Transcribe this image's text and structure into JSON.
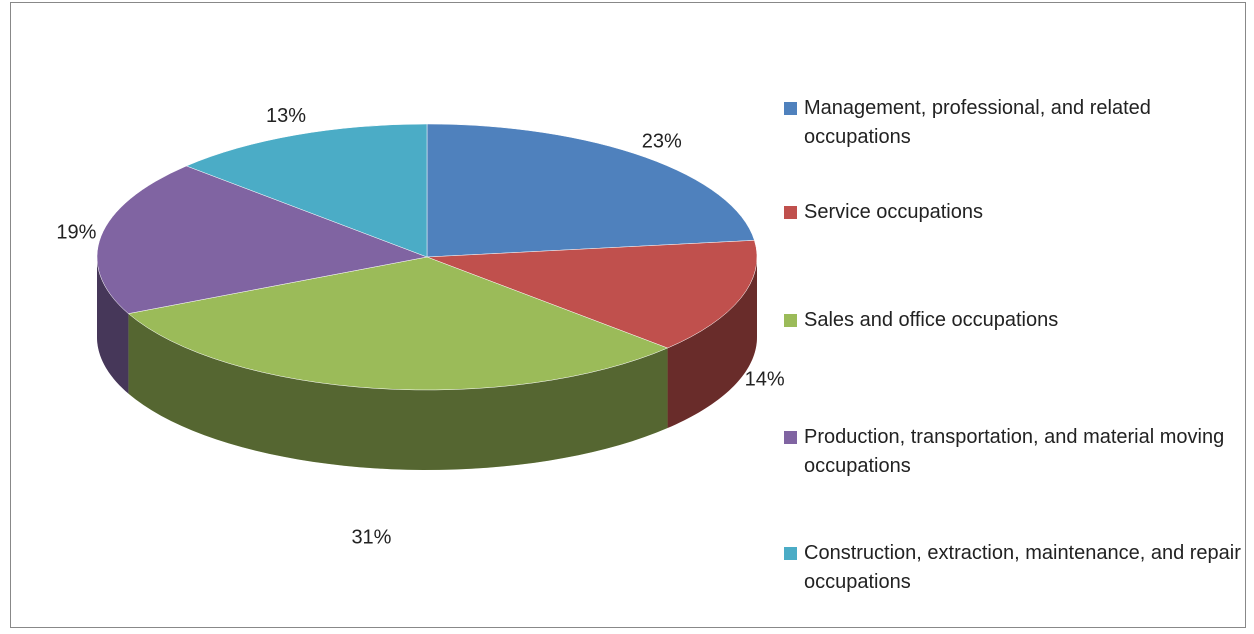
{
  "chart_data": {
    "type": "pie",
    "categories": [
      "Management, professional, and related occupations",
      "Service occupations",
      "Sales and office occupations",
      "Production, transportation, and material moving occupations",
      "Construction, extraction, maintenance, and repair occupations"
    ],
    "values": [
      23,
      14,
      31,
      19,
      13
    ],
    "value_labels": [
      "23%",
      "14%",
      "31%",
      "19%",
      "13%"
    ],
    "colors": [
      "#4f81bd",
      "#c0504d",
      "#9bbb59",
      "#8064a2",
      "#4bacc6"
    ],
    "legend": "right"
  }
}
